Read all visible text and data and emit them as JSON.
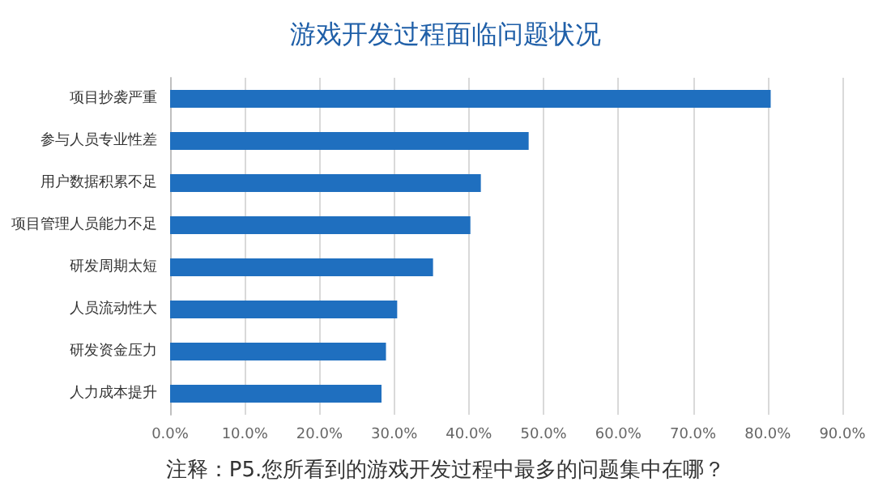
{
  "chart_data": {
    "type": "bar",
    "orientation": "horizontal",
    "title": "游戏开发过程面临问题状况",
    "categories": [
      "项目抄袭严重",
      "参与人员专业性差",
      "用户数据积累不足",
      "项目管理人员能力不足",
      "研发周期太短",
      "人员流动性大",
      "研发资金压力",
      "人力成本提升"
    ],
    "values": [
      80.4,
      48.0,
      41.6,
      40.2,
      35.2,
      30.4,
      28.9,
      28.3
    ],
    "color": "#1f6fbf",
    "xlim": [
      0,
      90
    ],
    "xticks": [
      {
        "value": 0,
        "label": "0.0%"
      },
      {
        "value": 10,
        "label": "10.0%"
      },
      {
        "value": 20,
        "label": "20.0%"
      },
      {
        "value": 30,
        "label": "30.0%"
      },
      {
        "value": 40,
        "label": "40.0%"
      },
      {
        "value": 50,
        "label": "50.0%"
      },
      {
        "value": 60,
        "label": "60.0%"
      },
      {
        "value": 70,
        "label": "70.0%"
      },
      {
        "value": 80,
        "label": "80.0%"
      },
      {
        "value": 90,
        "label": "90.0%"
      }
    ],
    "grid": "x",
    "annotations": [
      "注释：P5.您所看到的游戏开发过程中最多的问题集中在哪？"
    ]
  }
}
